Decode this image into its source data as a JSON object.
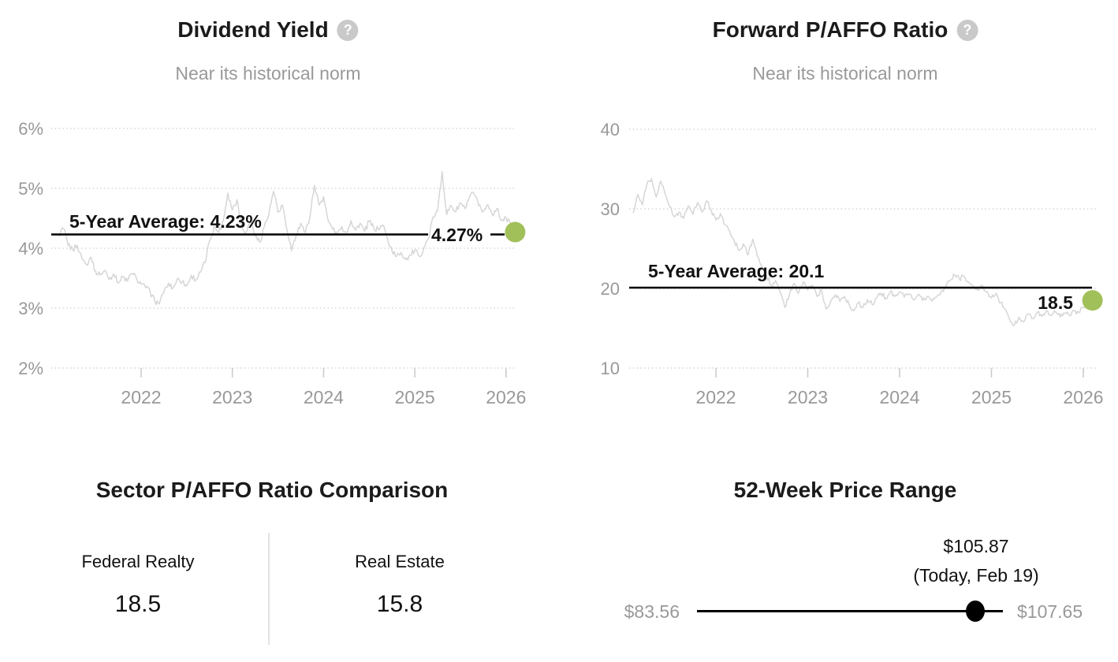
{
  "icons": {
    "help_glyph": "?"
  },
  "colors": {
    "accent_green": "#a2c05a",
    "series_gray": "#d6d6d6",
    "grid_gray": "#cbcbcb",
    "text_gray": "#999999",
    "text_dark": "#1b1b1b",
    "average_line": "#000000"
  },
  "charts": {
    "dividend_yield": {
      "title": "Dividend Yield",
      "subtitle": "Near its historical norm"
    },
    "forward_paffo": {
      "title": "Forward P/AFFO Ratio",
      "subtitle": "Near its historical norm"
    }
  },
  "sector_comparison": {
    "title": "Sector P/AFFO Ratio Comparison",
    "columns": [
      {
        "label": "Federal Realty",
        "value": "18.5"
      },
      {
        "label": "Real Estate",
        "value": "15.8"
      }
    ]
  },
  "price_range": {
    "title": "52-Week Price Range",
    "low": "$83.56",
    "high": "$107.65",
    "current_price": "$105.87",
    "current_date": "(Today, Feb 19)"
  },
  "chart_data": [
    {
      "type": "line",
      "title": "Dividend Yield",
      "subtitle": "Near its historical norm",
      "ylim": [
        2,
        6
      ],
      "y_grid_values": [
        6,
        5,
        4,
        3,
        2
      ],
      "y_tick_labels": [
        "6%",
        "5%",
        "4%",
        "3%",
        "2%"
      ],
      "x_tick_values": [
        2022,
        2023,
        2024,
        2025,
        2026
      ],
      "x_tick_labels": [
        "2022",
        "2023",
        "2024",
        "2025",
        "2026"
      ],
      "grid": true,
      "average": {
        "value": 4.23,
        "label": "5-Year Average: 4.23%"
      },
      "current": {
        "value": 4.27,
        "label": "4.27%"
      },
      "x_start": 2021.1,
      "x_step": 0.05,
      "values": [
        4.2,
        4.33,
        4.05,
        3.98,
        4.05,
        3.83,
        3.73,
        3.85,
        3.62,
        3.55,
        3.63,
        3.48,
        3.57,
        3.42,
        3.52,
        3.45,
        3.58,
        3.5,
        3.4,
        3.34,
        3.27,
        3.12,
        3.07,
        3.27,
        3.42,
        3.34,
        3.5,
        3.44,
        3.37,
        3.55,
        3.47,
        3.6,
        3.76,
        4.12,
        4.36,
        4.26,
        4.46,
        4.92,
        4.64,
        4.81,
        4.4,
        4.26,
        4.46,
        4.2,
        4.1,
        4.36,
        4.56,
        4.95,
        4.6,
        4.72,
        4.3,
        3.96,
        4.22,
        4.42,
        4.26,
        4.52,
        5.05,
        4.72,
        4.86,
        4.46,
        4.32,
        4.22,
        4.36,
        4.26,
        4.46,
        4.3,
        4.42,
        4.28,
        4.45,
        4.34,
        4.31,
        4.39,
        4.16,
        3.96,
        3.86,
        3.93,
        3.81,
        3.89,
        3.96,
        3.86,
        4.01,
        4.16,
        4.52,
        4.62,
        5.28,
        4.56,
        4.71,
        4.61,
        4.76,
        4.66,
        4.86,
        4.91,
        4.71,
        4.61,
        4.73,
        4.56,
        4.66,
        4.46,
        4.51,
        4.41,
        4.27
      ]
    },
    {
      "type": "line",
      "title": "Forward P/AFFO Ratio",
      "subtitle": "Near its historical norm",
      "ylim": [
        10,
        40
      ],
      "y_grid_values": [
        40,
        30,
        20,
        10
      ],
      "y_tick_labels": [
        "40",
        "30",
        "20",
        "10"
      ],
      "x_tick_values": [
        2022,
        2023,
        2024,
        2025,
        2026
      ],
      "x_tick_labels": [
        "2022",
        "2023",
        "2024",
        "2025",
        "2026"
      ],
      "grid": true,
      "average": {
        "value": 20.1,
        "label": "5-Year Average: 20.1"
      },
      "current": {
        "value": 18.5,
        "label": "18.5"
      },
      "x_start": 2021.1,
      "x_step": 0.05,
      "values": [
        29.5,
        31.8,
        30.5,
        33.2,
        33.8,
        31.5,
        33.5,
        31.8,
        30.2,
        29.0,
        29.6,
        28.8,
        30.4,
        29.3,
        30.8,
        29.6,
        31.0,
        29.8,
        28.6,
        29.4,
        28.0,
        27.2,
        26.0,
        24.8,
        25.6,
        24.2,
        26.2,
        24.0,
        22.8,
        21.6,
        20.4,
        21.0,
        19.6,
        17.6,
        19.2,
        20.6,
        19.4,
        20.8,
        19.8,
        20.4,
        19.0,
        19.8,
        17.4,
        18.4,
        19.2,
        18.4,
        19.0,
        18.0,
        17.2,
        18.2,
        17.6,
        18.6,
        18.0,
        18.8,
        19.4,
        18.8,
        19.6,
        19.0,
        19.6,
        18.9,
        19.3,
        18.6,
        19.2,
        18.5,
        19.0,
        18.4,
        18.9,
        19.5,
        20.2,
        21.0,
        21.7,
        21.2,
        21.5,
        20.8,
        20.3,
        19.8,
        20.4,
        19.6,
        18.8,
        19.4,
        18.2,
        17.4,
        16.0,
        15.4,
        16.4,
        15.8,
        16.8,
        16.2,
        17.0,
        16.5,
        17.2,
        16.6,
        17.0,
        16.4,
        16.9,
        16.6,
        17.2,
        17.0,
        17.6,
        18.0,
        18.5
      ]
    }
  ]
}
